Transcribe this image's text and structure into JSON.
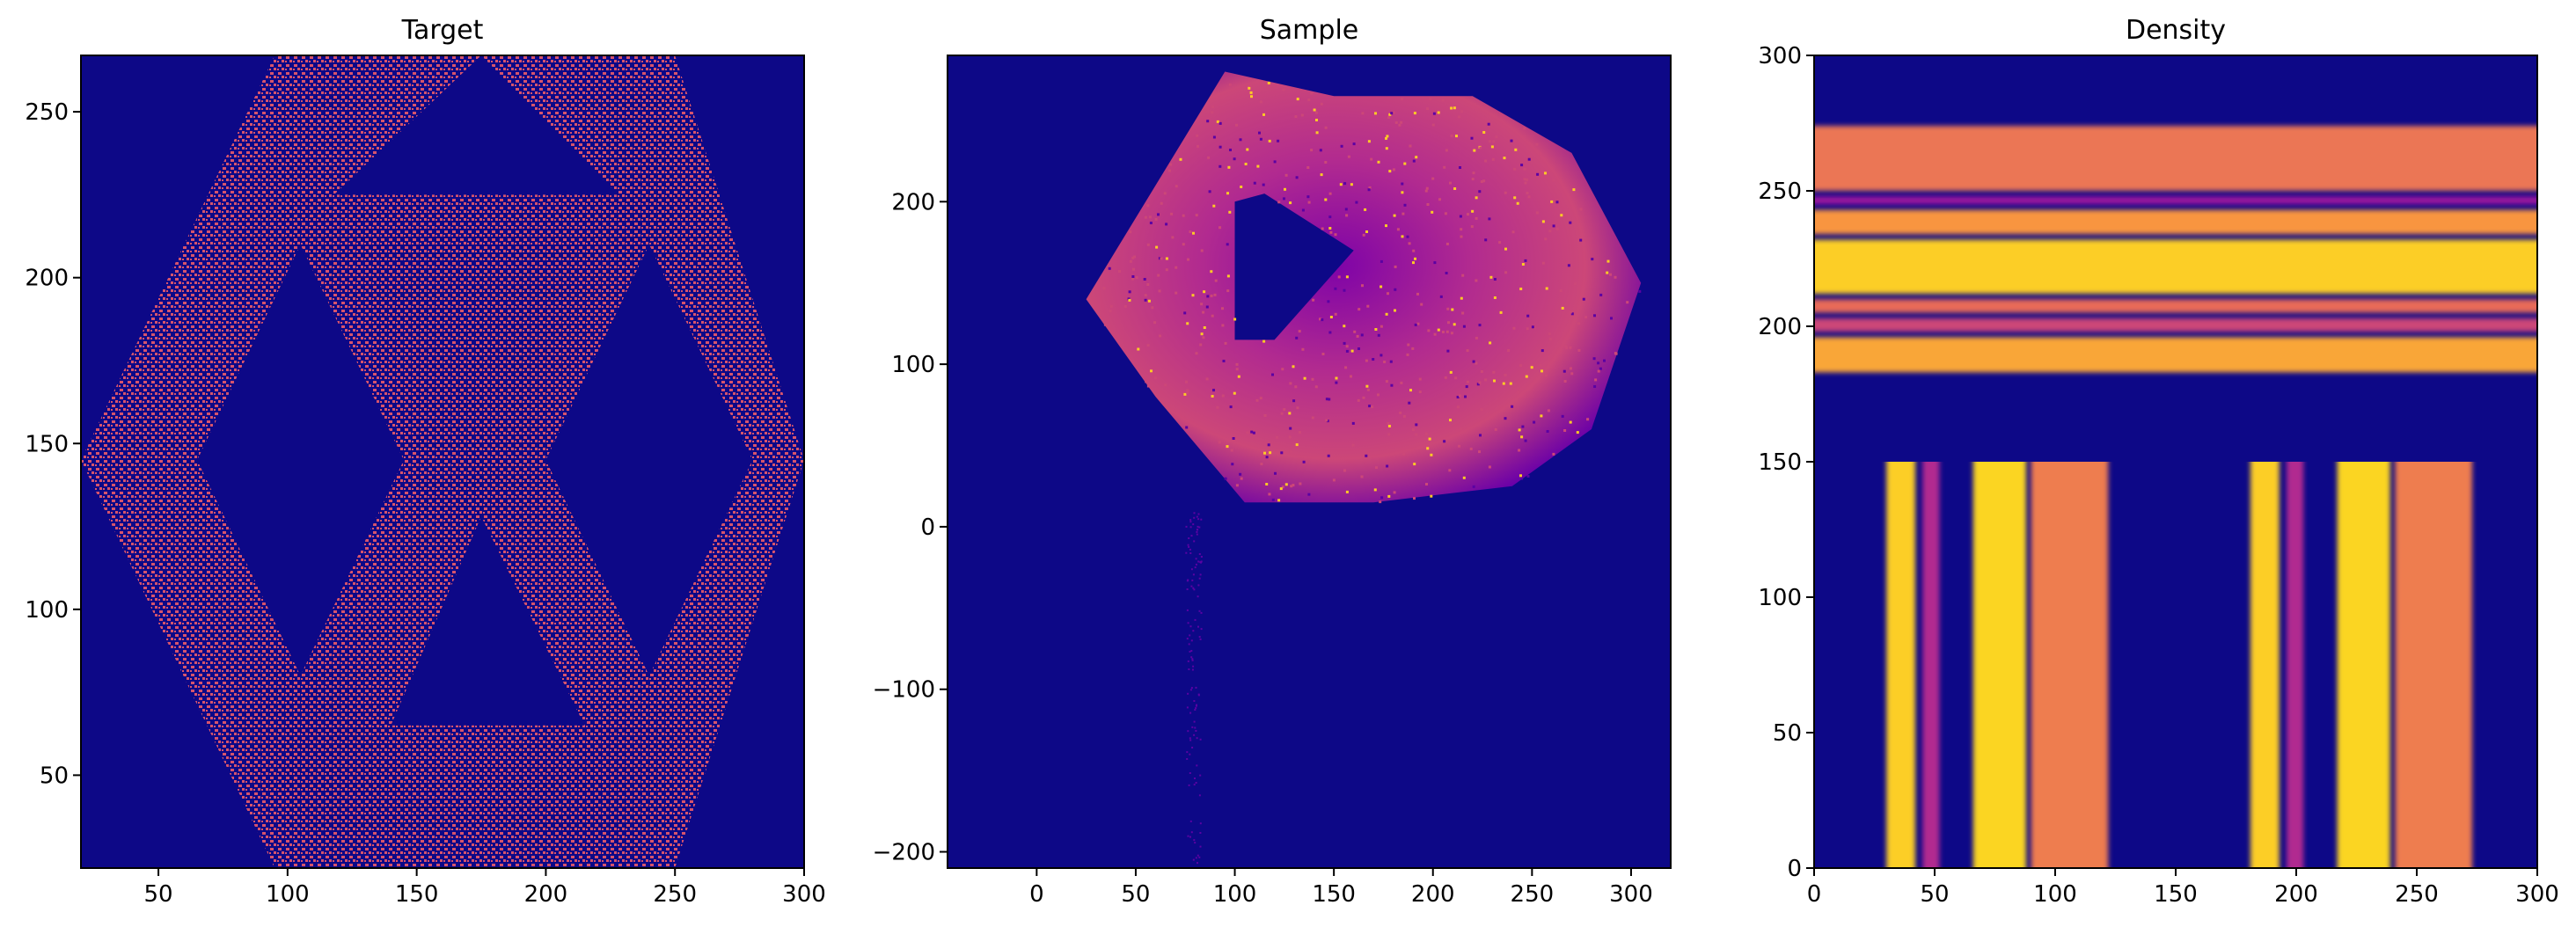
{
  "figure": {
    "background": "#ffffff",
    "colormap": "plasma",
    "background_color": "#0d0887"
  },
  "chart_data": [
    {
      "type": "heatmap",
      "title": "Target",
      "xlim": [
        20,
        300
      ],
      "ylim": [
        22,
        267
      ],
      "xticks": [
        50,
        100,
        150,
        200,
        250,
        300
      ],
      "yticks": [
        50,
        100,
        150,
        200,
        250
      ],
      "colors": {
        "background": "#0d0887",
        "points": "#d6546c"
      },
      "description_shape": "hexagon with inner diamond cutouts, dense sparse point mask",
      "hexagon": [
        [
          95,
          267
        ],
        [
          250,
          267
        ],
        [
          300,
          145
        ],
        [
          250,
          22
        ],
        [
          95,
          22
        ],
        [
          20,
          145
        ]
      ],
      "holes": [
        [
          [
            65,
            145
          ],
          [
            105,
            210
          ],
          [
            145,
            145
          ],
          [
            105,
            80
          ]
        ],
        [
          [
            200,
            145
          ],
          [
            240,
            210
          ],
          [
            280,
            145
          ],
          [
            240,
            80
          ]
        ],
        [
          [
            118,
            225
          ],
          [
            228,
            225
          ],
          [
            175,
            267
          ]
        ],
        [
          [
            140,
            65
          ],
          [
            215,
            65
          ],
          [
            175,
            128
          ]
        ]
      ]
    },
    {
      "type": "heatmap",
      "title": "Sample",
      "xlim": [
        -45,
        320
      ],
      "ylim": [
        -210,
        290
      ],
      "xticks": [
        0,
        50,
        100,
        150,
        200,
        250,
        300
      ],
      "yticks": [
        -200,
        -100,
        0,
        100,
        200
      ],
      "colors": {
        "background": "#0d0887",
        "low": "#5b02a3",
        "mid": "#cc4778",
        "high": "#fdca26"
      },
      "blob_outline": [
        [
          25,
          140
        ],
        [
          60,
          210
        ],
        [
          95,
          280
        ],
        [
          150,
          265
        ],
        [
          220,
          265
        ],
        [
          270,
          230
        ],
        [
          305,
          150
        ],
        [
          280,
          60
        ],
        [
          240,
          25
        ],
        [
          170,
          15
        ],
        [
          105,
          15
        ],
        [
          60,
          80
        ]
      ],
      "inner_hole": [
        [
          100,
          200
        ],
        [
          115,
          205
        ],
        [
          160,
          170
        ],
        [
          120,
          115
        ],
        [
          100,
          115
        ]
      ]
    },
    {
      "type": "heatmap",
      "title": "Density",
      "xlim": [
        0,
        300
      ],
      "ylim": [
        0,
        300
      ],
      "xticks": [
        0,
        50,
        100,
        150,
        200,
        250,
        300
      ],
      "yticks": [
        0,
        50,
        100,
        150,
        200,
        250,
        300
      ],
      "colors": {
        "background": "#0d0887"
      },
      "horizontal_bands_x_range": [
        0,
        300
      ],
      "horizontal_bands": [
        {
          "y0": 183,
          "y1": 196,
          "color": "#f9a637"
        },
        {
          "y0": 198,
          "y1": 203,
          "color": "#cc4778"
        },
        {
          "y0": 205,
          "y1": 210,
          "color": "#e86a59"
        },
        {
          "y0": 212,
          "y1": 232,
          "color": "#fcce25"
        },
        {
          "y0": 234,
          "y1": 243,
          "color": "#f89540"
        },
        {
          "y0": 245,
          "y1": 248,
          "color": "#9c179e"
        },
        {
          "y0": 250,
          "y1": 274,
          "color": "#eb7655"
        }
      ],
      "vertical_bands_y_range": [
        0,
        150
      ],
      "vertical_bands": [
        {
          "x0": 30,
          "x1": 42,
          "color": "#fcce25"
        },
        {
          "x0": 45,
          "x1": 52,
          "color": "#b12a90"
        },
        {
          "x0": 66,
          "x1": 88,
          "color": "#fbd524"
        },
        {
          "x0": 90,
          "x1": 122,
          "color": "#ee7d4f"
        },
        {
          "x0": 181,
          "x1": 193,
          "color": "#fcce25"
        },
        {
          "x0": 196,
          "x1": 203,
          "color": "#b12a90"
        },
        {
          "x0": 217,
          "x1": 239,
          "color": "#fbd524"
        },
        {
          "x0": 241,
          "x1": 273,
          "color": "#ee7d4f"
        }
      ]
    }
  ]
}
